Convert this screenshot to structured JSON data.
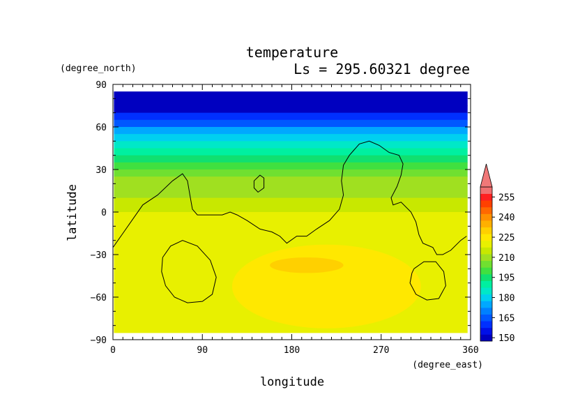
{
  "chart_data": {
    "type": "heatmap",
    "title": "temperature",
    "subtitle": "Ls = 295.60321 degree",
    "xlabel": "longitude",
    "ylabel": "latitude",
    "x_unit": "(degree_east)",
    "y_unit": "(degree_north)",
    "xlim": [
      0,
      360
    ],
    "ylim": [
      -90,
      90
    ],
    "x_ticks": [
      "0",
      "90",
      "180",
      "270",
      "360"
    ],
    "y_ticks": [
      "90",
      "60",
      "30",
      "0",
      "−30",
      "−60",
      "−90"
    ],
    "colorbar": {
      "levels": [
        150,
        155,
        160,
        165,
        170,
        175,
        180,
        185,
        190,
        195,
        200,
        205,
        210,
        215,
        220,
        225,
        230,
        235,
        240,
        245,
        250,
        255,
        260
      ],
      "tick_labels": [
        "150",
        "165",
        "180",
        "195",
        "210",
        "225",
        "240",
        "255"
      ],
      "colors": [
        "#0000c0",
        "#0010e8",
        "#0030ff",
        "#0058ff",
        "#0080ff",
        "#00a8ff",
        "#00d0f0",
        "#00e8c8",
        "#00f0a0",
        "#10e070",
        "#40e040",
        "#70e030",
        "#a0e020",
        "#c8e800",
        "#e8f000",
        "#ffe800",
        "#ffd000",
        "#ffb000",
        "#ff9000",
        "#ff6800",
        "#ff4000",
        "#ff2020",
        "#f07070"
      ],
      "extend_max": true
    },
    "latitude_profile": [
      {
        "lat": 85,
        "temp": 150
      },
      {
        "lat": 80,
        "temp": 150
      },
      {
        "lat": 75,
        "temp": 152
      },
      {
        "lat": 70,
        "temp": 157
      },
      {
        "lat": 65,
        "temp": 164
      },
      {
        "lat": 60,
        "temp": 172
      },
      {
        "lat": 55,
        "temp": 180
      },
      {
        "lat": 50,
        "temp": 186
      },
      {
        "lat": 45,
        "temp": 191
      },
      {
        "lat": 40,
        "temp": 196
      },
      {
        "lat": 35,
        "temp": 200
      },
      {
        "lat": 30,
        "temp": 204
      },
      {
        "lat": 25,
        "temp": 208
      },
      {
        "lat": 20,
        "temp": 212
      },
      {
        "lat": 10,
        "temp": 216
      },
      {
        "lat": 0,
        "temp": 219
      },
      {
        "lat": -10,
        "temp": 221
      },
      {
        "lat": -20,
        "temp": 223
      },
      {
        "lat": -30,
        "temp": 223
      },
      {
        "lat": -45,
        "temp": 223
      },
      {
        "lat": -60,
        "temp": 222
      },
      {
        "lat": -75,
        "temp": 221
      },
      {
        "lat": -85,
        "temp": 221
      }
    ],
    "warm_region": {
      "lon_range": [
        120,
        310
      ],
      "lat_range": [
        -82,
        -23
      ],
      "temp": 227
    },
    "warm_core": {
      "lon_range": [
        158,
        232
      ],
      "lat_range": [
        -43,
        -32
      ],
      "temp": 232
    },
    "topography_contours": [
      [
        [
          0,
          -25
        ],
        [
          10,
          -15
        ],
        [
          20,
          -5
        ],
        [
          30,
          5
        ],
        [
          45,
          12
        ],
        [
          60,
          22
        ],
        [
          70,
          27
        ],
        [
          75,
          22
        ],
        [
          78,
          10
        ],
        [
          80,
          2
        ],
        [
          85,
          -2
        ],
        [
          100,
          -2
        ],
        [
          110,
          -2
        ],
        [
          118,
          0
        ],
        [
          125,
          -2
        ],
        [
          135,
          -6
        ],
        [
          148,
          -12
        ],
        [
          160,
          -14
        ],
        [
          168,
          -17
        ],
        [
          175,
          -22
        ],
        [
          185,
          -17
        ],
        [
          195,
          -17
        ],
        [
          205,
          -12
        ],
        [
          218,
          -6
        ],
        [
          228,
          2
        ],
        [
          232,
          12
        ],
        [
          230,
          22
        ],
        [
          232,
          33
        ],
        [
          238,
          40
        ],
        [
          248,
          48
        ],
        [
          258,
          50
        ],
        [
          268,
          47
        ],
        [
          278,
          42
        ],
        [
          288,
          40
        ],
        [
          292,
          34
        ],
        [
          290,
          26
        ],
        [
          286,
          18
        ],
        [
          280,
          10
        ],
        [
          282,
          5
        ],
        [
          290,
          7
        ],
        [
          300,
          0
        ],
        [
          305,
          -7
        ],
        [
          308,
          -16
        ],
        [
          312,
          -22
        ],
        [
          322,
          -25
        ],
        [
          326,
          -30
        ],
        [
          332,
          -30
        ],
        [
          340,
          -27
        ],
        [
          350,
          -20
        ],
        [
          356,
          -17
        ]
      ],
      [
        [
          142,
          22
        ],
        [
          148,
          26
        ],
        [
          152,
          24
        ],
        [
          152,
          17
        ],
        [
          146,
          14
        ],
        [
          142,
          17
        ],
        [
          142,
          22
        ]
      ],
      [
        [
          50,
          -32
        ],
        [
          58,
          -24
        ],
        [
          70,
          -20
        ],
        [
          85,
          -24
        ],
        [
          98,
          -34
        ],
        [
          104,
          -46
        ],
        [
          100,
          -58
        ],
        [
          90,
          -63
        ],
        [
          75,
          -64
        ],
        [
          62,
          -60
        ],
        [
          53,
          -52
        ],
        [
          49,
          -42
        ],
        [
          50,
          -32
        ]
      ],
      [
        [
          303,
          -40
        ],
        [
          313,
          -35
        ],
        [
          325,
          -35
        ],
        [
          333,
          -42
        ],
        [
          335,
          -52
        ],
        [
          328,
          -61
        ],
        [
          316,
          -62
        ],
        [
          305,
          -58
        ],
        [
          299,
          -50
        ],
        [
          301,
          -43
        ],
        [
          303,
          -40
        ]
      ]
    ]
  }
}
